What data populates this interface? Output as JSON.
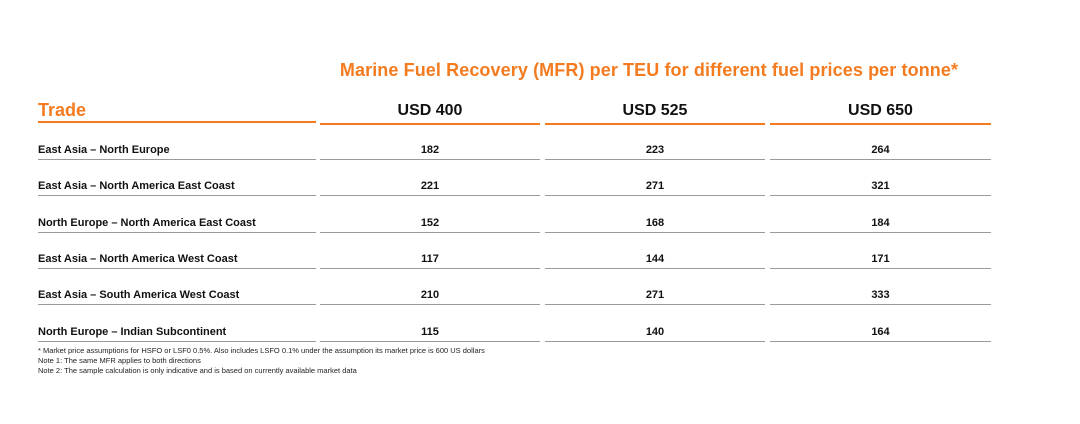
{
  "title": "Marine Fuel Recovery (MFR) per TEU for different fuel prices per tonne*",
  "header": {
    "trade": "Trade",
    "columns": [
      "USD 400",
      "USD 525",
      "USD 650"
    ]
  },
  "rows": [
    {
      "trade": "East Asia – North Europe",
      "values": [
        "182",
        "223",
        "264"
      ]
    },
    {
      "trade": "East Asia –  North America East Coast",
      "values": [
        "221",
        "271",
        "321"
      ]
    },
    {
      "trade": "North Europe – North America East Coast",
      "values": [
        "152",
        "168",
        "184"
      ]
    },
    {
      "trade": "East Asia – North America West Coast",
      "values": [
        "117",
        "144",
        "171"
      ]
    },
    {
      "trade": "East Asia –  South America West Coast",
      "values": [
        "210",
        "271",
        "333"
      ]
    },
    {
      "trade": "North Europe –  Indian Subcontinent",
      "values": [
        "115",
        "140",
        "164"
      ]
    }
  ],
  "footnotes": [
    "* Market price assumptions for HSFO or LSF0 0.5%. Also includes LSFO 0.1% under the assumption its market price is 600 US dollars",
    "Note 1: The same MFR applies to both directions",
    "Note 2: The sample calculation is only indicative and is based on currently available market data"
  ],
  "colors": {
    "accent": "#f47b20",
    "text": "#111111",
    "rule": "#9a9a9a"
  }
}
